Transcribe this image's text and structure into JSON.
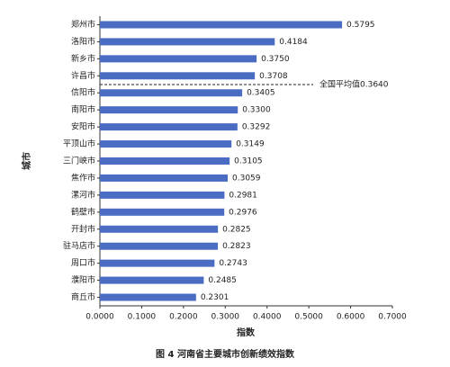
{
  "chart_data": {
    "type": "bar",
    "orientation": "horizontal",
    "caption": "图 4  河南省主要城市创新绩效指数",
    "x_label": "指数",
    "y_label": "城市",
    "categories": [
      "郑州市",
      "洛阳市",
      "新乡市",
      "许昌市",
      "信阳市",
      "南阳市",
      "安阳市",
      "平顶山市",
      "三门峡市",
      "焦作市",
      "漯河市",
      "鹤壁市",
      "开封市",
      "驻马店市",
      "周口市",
      "濮阳市",
      "商丘市"
    ],
    "values": [
      0.5795,
      0.4184,
      0.375,
      0.3708,
      0.3405,
      0.33,
      0.3292,
      0.3149,
      0.3105,
      0.3059,
      0.2981,
      0.2976,
      0.2825,
      0.2823,
      0.2743,
      0.2485,
      0.2301
    ],
    "value_labels": [
      "0.5795",
      "0.4184",
      "0.3750",
      "0.3708",
      "0.3405",
      "0.3300",
      "0.3292",
      "0.3149",
      "0.3105",
      "0.3059",
      "0.2981",
      "0.2976",
      "0.2825",
      "0.2823",
      "0.2743",
      "0.2485",
      "0.2301"
    ],
    "color": "#4a6cc2",
    "annotation": "全国平均值0.3640",
    "xlim": [
      0,
      0.7
    ],
    "xticks": [
      {
        "value": 0,
        "label": "0.0000"
      },
      {
        "value": 0.1,
        "label": "0.1000"
      },
      {
        "value": 0.2,
        "label": "0.2000"
      },
      {
        "value": 0.3,
        "label": "0.3000"
      },
      {
        "value": 0.4,
        "label": "0.4000"
      },
      {
        "value": 0.5,
        "label": "0.5000"
      },
      {
        "value": 0.6,
        "label": "0.6000"
      },
      {
        "value": 0.7,
        "label": "0.7000"
      }
    ]
  }
}
